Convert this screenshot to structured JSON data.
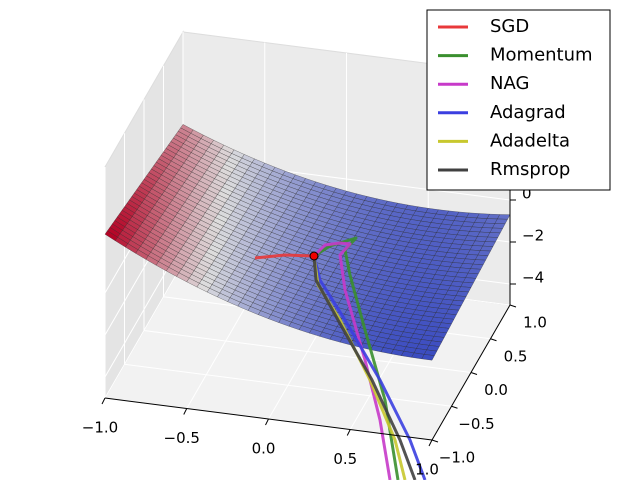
{
  "chart_data": {
    "type": "surface3d",
    "series": [
      {
        "name": "SGD",
        "color": "#e8383a"
      },
      {
        "name": "Momentum",
        "color": "#3a8f2e"
      },
      {
        "name": "NAG",
        "color": "#c73ac9"
      },
      {
        "name": "Adagrad",
        "color": "#3b3fe0"
      },
      {
        "name": "Adadelta",
        "color": "#c8c82e"
      },
      {
        "name": "Rmsprop",
        "color": "#404040"
      }
    ],
    "xlim": [
      -1,
      1
    ],
    "xticks": [
      {
        "value": -1,
        "label": "−1.0"
      },
      {
        "value": -0.5,
        "label": "−0.5"
      },
      {
        "value": 0,
        "label": "0.0"
      },
      0.5,
      {
        "value": 1,
        "label": "1.0"
      }
    ],
    "ylim": [
      -1,
      1
    ],
    "yticks": [
      {
        "value": -1,
        "label": "−1.0"
      },
      {
        "value": -0.5,
        "label": "−0.5"
      },
      {
        "value": 0,
        "label": "0.0"
      },
      0.5,
      {
        "value": 1,
        "label": "1.0"
      }
    ],
    "zticks": [
      {
        "value": -4,
        "label": "−4"
      },
      {
        "value": -2,
        "label": "−2"
      },
      0
    ],
    "legend": "upper right"
  }
}
